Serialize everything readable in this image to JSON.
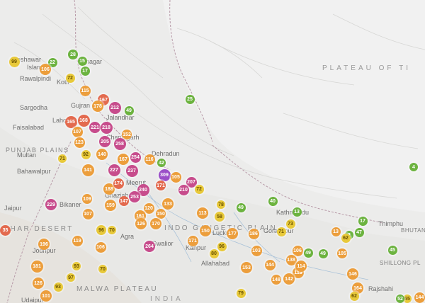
{
  "map": {
    "colors": {
      "good": "#6cb33f",
      "moderate": "#e8c93a",
      "unhealthy_sensitive": "#ec9e3c",
      "unhealthy": "#e36a4e",
      "very_unhealthy": "#c74c8c",
      "hazardous": "#9b4fc8"
    },
    "region_labels": [
      {
        "id": "plateau-of-tibet",
        "text": "PLATEAU OF TI"
      },
      {
        "id": "punjab-plains",
        "text": "PUNJAB PLAINS"
      },
      {
        "id": "thar-desert",
        "text": "THAR DESERT"
      },
      {
        "id": "malwa-plateau",
        "text": "MALWA PLATEAU"
      },
      {
        "id": "indo-gangetic",
        "text": "INDO GANGETIC PLAIN"
      },
      {
        "id": "india",
        "text": "INDIA"
      },
      {
        "id": "bhutan",
        "text": "BHUTAN"
      },
      {
        "id": "shillong",
        "text": "SHILLONG PL"
      }
    ],
    "city_labels": [
      "Peshawar",
      "Islam",
      "Rawalpindi",
      "Srinagar",
      "Kotli",
      "Sargodha",
      "Gujran",
      "Faisalabad",
      "Lahore",
      "Jalandhar",
      "Multan",
      "Bahawalpur",
      "Chandigarh",
      "Dehradun",
      "Meerut",
      "Ghaziabad",
      "Bikaner",
      "Jodhpur",
      "Gwalior",
      "Kanpur",
      "Lucknow",
      "Allahabad",
      "Gorakhpur",
      "Kathmandu",
      "Thimphu",
      "Rajshahi",
      "Jaipur",
      "Udaipur",
      "Agra"
    ],
    "markers": [
      {
        "v": "99",
        "l": "moderate"
      },
      {
        "v": "22",
        "l": "good"
      },
      {
        "v": "28",
        "l": "good"
      },
      {
        "v": "106",
        "l": "unhealthy_sensitive"
      },
      {
        "v": "15",
        "l": "good"
      },
      {
        "v": "17",
        "l": "good"
      },
      {
        "v": "72",
        "l": "moderate"
      },
      {
        "v": "115",
        "l": "unhealthy_sensitive"
      },
      {
        "v": "167",
        "l": "unhealthy"
      },
      {
        "v": "178",
        "l": "unhealthy_sensitive"
      },
      {
        "v": "212",
        "l": "very_unhealthy"
      },
      {
        "v": "49",
        "l": "good"
      },
      {
        "v": "25",
        "l": "good"
      },
      {
        "v": "165",
        "l": "unhealthy"
      },
      {
        "v": "168",
        "l": "unhealthy"
      },
      {
        "v": "221",
        "l": "very_unhealthy"
      },
      {
        "v": "218",
        "l": "very_unhealthy"
      },
      {
        "v": "107",
        "l": "unhealthy_sensitive"
      },
      {
        "v": "152",
        "l": "unhealthy_sensitive"
      },
      {
        "v": "205",
        "l": "very_unhealthy"
      },
      {
        "v": "258",
        "l": "very_unhealthy"
      },
      {
        "v": "123",
        "l": "unhealthy_sensitive"
      },
      {
        "v": "92",
        "l": "moderate"
      },
      {
        "v": "140",
        "l": "unhealthy_sensitive"
      },
      {
        "v": "71",
        "l": "moderate"
      },
      {
        "v": "254",
        "l": "very_unhealthy"
      },
      {
        "v": "116",
        "l": "unhealthy_sensitive"
      },
      {
        "v": "42",
        "l": "good"
      },
      {
        "v": "167",
        "l": "unhealthy_sensitive"
      },
      {
        "v": "141",
        "l": "unhealthy_sensitive"
      },
      {
        "v": "227",
        "l": "very_unhealthy"
      },
      {
        "v": "237",
        "l": "very_unhealthy"
      },
      {
        "v": "4",
        "l": "good"
      },
      {
        "v": "309",
        "l": "hazardous"
      },
      {
        "v": "105",
        "l": "unhealthy_sensitive"
      },
      {
        "v": "207",
        "l": "very_unhealthy"
      },
      {
        "v": "171",
        "l": "unhealthy"
      },
      {
        "v": "210",
        "l": "very_unhealthy"
      },
      {
        "v": "72",
        "l": "moderate"
      },
      {
        "v": "188",
        "l": "unhealthy_sensitive"
      },
      {
        "v": "174",
        "l": "unhealthy"
      },
      {
        "v": "240",
        "l": "very_unhealthy"
      },
      {
        "v": "253",
        "l": "very_unhealthy"
      },
      {
        "v": "109",
        "l": "unhealthy_sensitive"
      },
      {
        "v": "159",
        "l": "unhealthy_sensitive"
      },
      {
        "v": "147",
        "l": "unhealthy"
      },
      {
        "v": "133",
        "l": "unhealthy_sensitive"
      },
      {
        "v": "229",
        "l": "very_unhealthy"
      },
      {
        "v": "78",
        "l": "moderate"
      },
      {
        "v": "49",
        "l": "good"
      },
      {
        "v": "40",
        "l": "good"
      },
      {
        "v": "13",
        "l": "good"
      },
      {
        "v": "107",
        "l": "unhealthy_sensitive"
      },
      {
        "v": "120",
        "l": "unhealthy_sensitive"
      },
      {
        "v": "161",
        "l": "unhealthy_sensitive"
      },
      {
        "v": "150",
        "l": "unhealthy_sensitive"
      },
      {
        "v": "113",
        "l": "unhealthy_sensitive"
      },
      {
        "v": "58",
        "l": "moderate"
      },
      {
        "v": "73",
        "l": "moderate"
      },
      {
        "v": "17",
        "l": "good"
      },
      {
        "v": "47",
        "l": "good"
      },
      {
        "v": "2",
        "l": "good"
      },
      {
        "v": "13",
        "l": "unhealthy_sensitive"
      },
      {
        "v": "126",
        "l": "unhealthy_sensitive"
      },
      {
        "v": "170",
        "l": "unhealthy_sensitive"
      },
      {
        "v": "96",
        "l": "moderate"
      },
      {
        "v": "70",
        "l": "moderate"
      },
      {
        "v": "150",
        "l": "unhealthy_sensitive"
      },
      {
        "v": "177",
        "l": "unhealthy_sensitive"
      },
      {
        "v": "186",
        "l": "unhealthy_sensitive"
      },
      {
        "v": "71",
        "l": "moderate"
      },
      {
        "v": "62",
        "l": "moderate"
      },
      {
        "v": "35",
        "l": "unhealthy"
      },
      {
        "v": "196",
        "l": "unhealthy_sensitive"
      },
      {
        "v": "119",
        "l": "unhealthy_sensitive"
      },
      {
        "v": "106",
        "l": "unhealthy_sensitive"
      },
      {
        "v": "264",
        "l": "very_unhealthy"
      },
      {
        "v": "171",
        "l": "unhealthy_sensitive"
      },
      {
        "v": "45",
        "l": "good"
      },
      {
        "v": "105",
        "l": "unhealthy_sensitive"
      },
      {
        "v": "96",
        "l": "moderate"
      },
      {
        "v": "80",
        "l": "moderate"
      },
      {
        "v": "103",
        "l": "unhealthy_sensitive"
      },
      {
        "v": "106",
        "l": "unhealthy_sensitive"
      },
      {
        "v": "49",
        "l": "good"
      },
      {
        "v": "49",
        "l": "good"
      },
      {
        "v": "181",
        "l": "unhealthy_sensitive"
      },
      {
        "v": "93",
        "l": "moderate"
      },
      {
        "v": "70",
        "l": "moderate"
      },
      {
        "v": "153",
        "l": "unhealthy_sensitive"
      },
      {
        "v": "144",
        "l": "unhealthy_sensitive"
      },
      {
        "v": "138",
        "l": "unhealthy_sensitive"
      },
      {
        "v": "113",
        "l": "unhealthy_sensitive"
      },
      {
        "v": "114",
        "l": "unhealthy_sensitive"
      },
      {
        "v": "146",
        "l": "unhealthy_sensitive"
      },
      {
        "v": "126",
        "l": "unhealthy_sensitive"
      },
      {
        "v": "93",
        "l": "moderate"
      },
      {
        "v": "97",
        "l": "moderate"
      },
      {
        "v": "148",
        "l": "unhealthy_sensitive"
      },
      {
        "v": "142",
        "l": "unhealthy_sensitive"
      },
      {
        "v": "164",
        "l": "unhealthy_sensitive"
      },
      {
        "v": "101",
        "l": "unhealthy_sensitive"
      },
      {
        "v": "79",
        "l": "moderate"
      },
      {
        "v": "62",
        "l": "moderate"
      },
      {
        "v": "55",
        "l": "moderate"
      },
      {
        "v": "52",
        "l": "good"
      },
      {
        "v": "144",
        "l": "unhealthy_sensitive"
      }
    ]
  }
}
